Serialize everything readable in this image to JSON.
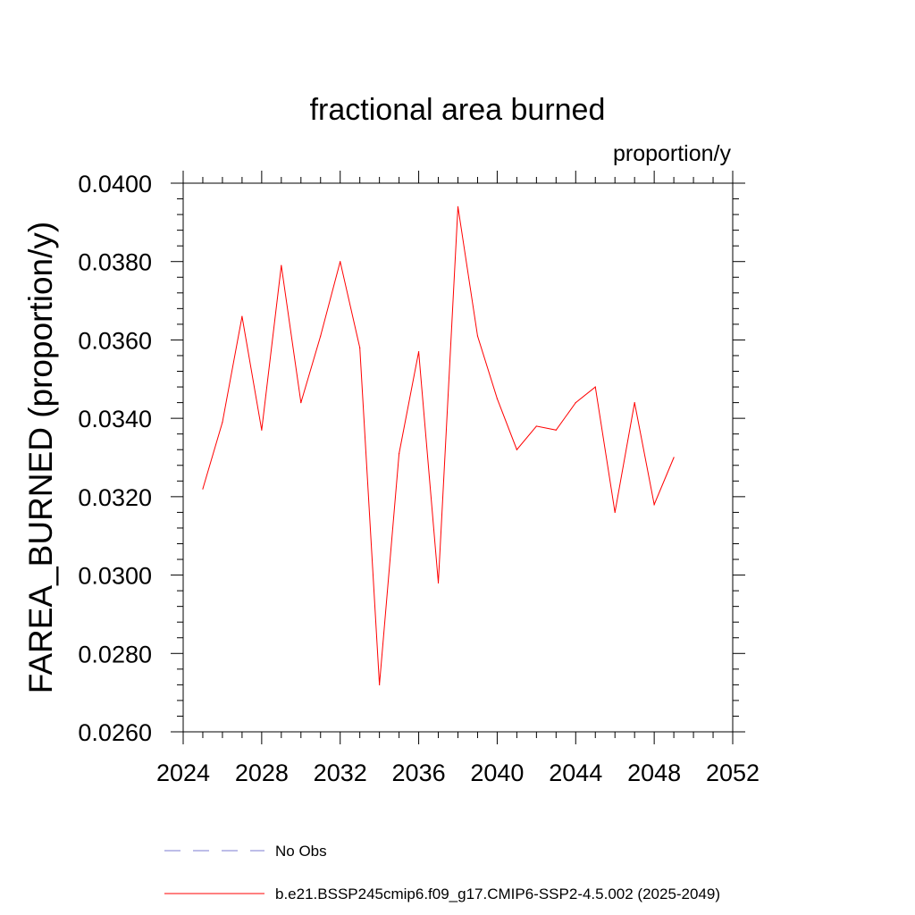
{
  "chart_data": {
    "type": "line",
    "title": "fractional area burned",
    "units": "proportion/y",
    "xlabel": "",
    "ylabel": "FAREA_BURNED  (proportion/y)",
    "xlim": [
      2024,
      2052
    ],
    "ylim": [
      0.026,
      0.04
    ],
    "x_ticks": [
      2024,
      2028,
      2032,
      2036,
      2040,
      2044,
      2048,
      2052
    ],
    "x_tick_labels": [
      "2024",
      "2028",
      "2032",
      "2036",
      "2040",
      "2044",
      "2048",
      "2052"
    ],
    "y_ticks": [
      0.026,
      0.028,
      0.03,
      0.032,
      0.034,
      0.036,
      0.038,
      0.04
    ],
    "y_tick_labels": [
      "0.0260",
      "0.0280",
      "0.0300",
      "0.0320",
      "0.0340",
      "0.0360",
      "0.0380",
      "0.0400"
    ],
    "grid": false,
    "legend_position": "bottom",
    "series": [
      {
        "name": "No Obs",
        "color": "#7b7bd0",
        "dash": "dashed",
        "x": [],
        "values": []
      },
      {
        "name": "b.e21.BSSP245cmip6.f09_g17.CMIP6-SSP2-4.5.002 (2025-2049)",
        "color": "#ff0000",
        "dash": "solid",
        "x": [
          2025,
          2026,
          2027,
          2028,
          2029,
          2030,
          2031,
          2032,
          2033,
          2034,
          2035,
          2036,
          2037,
          2038,
          2039,
          2040,
          2041,
          2042,
          2043,
          2044,
          2045,
          2046,
          2047,
          2048,
          2049
        ],
        "values": [
          0.0322,
          0.0339,
          0.0366,
          0.0337,
          0.0379,
          0.0344,
          0.0361,
          0.038,
          0.0358,
          0.0272,
          0.0331,
          0.0357,
          0.0298,
          0.0394,
          0.0361,
          0.0345,
          0.0332,
          0.0338,
          0.0337,
          0.0344,
          0.0348,
          0.0316,
          0.0344,
          0.0318,
          0.033
        ]
      }
    ]
  }
}
